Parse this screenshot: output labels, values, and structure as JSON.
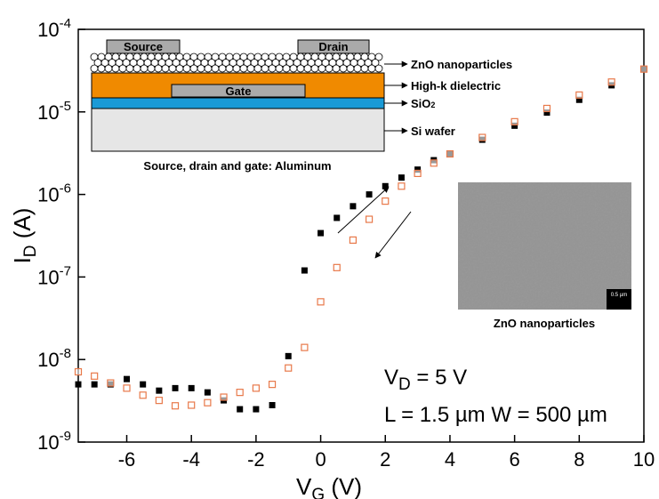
{
  "chart_data": {
    "type": "scatter",
    "xlabel": "VG (V)",
    "ylabel": "ID (A)",
    "xlim": [
      -7.5,
      10
    ],
    "xticks": [
      -6,
      -4,
      -2,
      0,
      2,
      4,
      6,
      8,
      10
    ],
    "ylim": [
      1e-09,
      0.0001
    ],
    "log_y": true,
    "yticks": [
      {
        "value": 1e-09,
        "label": "10-9"
      },
      {
        "value": 1e-08,
        "label": "10-8"
      },
      {
        "value": 1e-07,
        "label": "10-7"
      },
      {
        "value": 1e-06,
        "label": "10-6"
      },
      {
        "value": 1e-05,
        "label": "10-5"
      },
      {
        "value": 0.0001,
        "label": "10-4"
      }
    ],
    "x": [
      -7.5,
      -7,
      -6.5,
      -6,
      -5.5,
      -5,
      -4.5,
      -4,
      -3.5,
      -3,
      -2.5,
      -2,
      -1.5,
      -1,
      -0.5,
      0,
      0.5,
      1,
      1.5,
      2,
      2.5,
      3,
      3.5,
      4,
      5,
      6,
      7,
      8,
      9,
      10
    ],
    "series": [
      {
        "color": "#000000",
        "marker": "filled-square",
        "values": [
          5e-09,
          5e-09,
          5e-09,
          5.8e-09,
          5e-09,
          4.2e-09,
          4.5e-09,
          4.5e-09,
          4e-09,
          3.2e-09,
          2.5e-09,
          2.5e-09,
          2.8e-09,
          1.1e-08,
          1.2e-07,
          3.4e-07,
          5.2e-07,
          7.2e-07,
          1e-06,
          1.26e-06,
          1.6e-06,
          2e-06,
          2.6e-06,
          3.1e-06,
          4.6e-06,
          6.8e-06,
          9.8e-06,
          1.4e-05,
          2.1e-05,
          3.3e-05
        ]
      },
      {
        "color": "#e8794a",
        "marker": "open-square",
        "values": [
          7.1e-09,
          6.3e-09,
          5.2e-09,
          4.5e-09,
          3.7e-09,
          3.2e-09,
          2.75e-09,
          2.8e-09,
          3e-09,
          3.5e-09,
          4e-09,
          4.5e-09,
          5e-09,
          7.9e-09,
          1.4e-08,
          5e-08,
          1.3e-07,
          2.8e-07,
          5e-07,
          8.3e-07,
          1.26e-06,
          1.8e-06,
          2.4e-06,
          3.1e-06,
          4.9e-06,
          7.6e-06,
          1.1e-05,
          1.6e-05,
          2.3e-05,
          3.3e-05
        ]
      }
    ],
    "annotations": [
      "VD = 5 V",
      "L = 1.5 µm W = 500 µm"
    ]
  },
  "inset": {
    "source": "Source",
    "drain": "Drain",
    "gate": "Gate",
    "layers": [
      "ZnO nanoparticles",
      "High-k dielectric",
      "SiO2",
      "Si wafer"
    ],
    "caption": "Source, drain and gate: Aluminum",
    "image_caption": "ZnO nanoparticles",
    "scale_bar": "0.5 µm"
  }
}
